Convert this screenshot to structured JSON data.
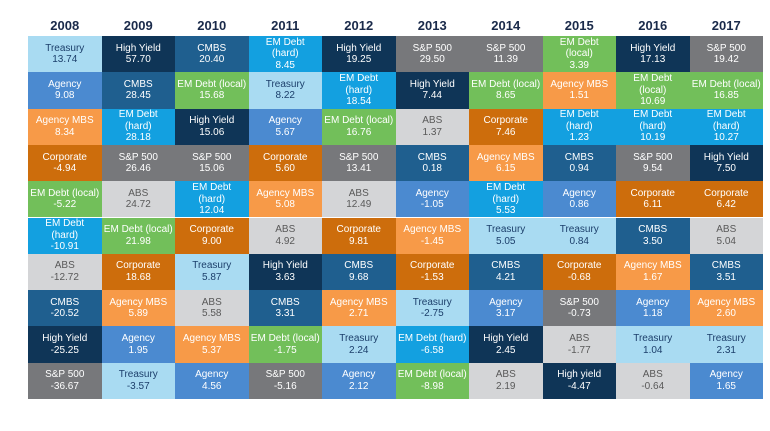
{
  "chart_data": {
    "type": "table",
    "years": [
      "2008",
      "2009",
      "2010",
      "2011",
      "2012",
      "2013",
      "2014",
      "2015",
      "2016",
      "2017"
    ],
    "colors": {
      "Treasury": {
        "bg": "#a9dbf2",
        "fg": "#1c3f6b"
      },
      "High Yield": {
        "bg": "#0f3557",
        "fg": "#ffffff"
      },
      "CMBS": {
        "bg": "#1f5f8f",
        "fg": "#ffffff"
      },
      "EM Debt (hard)": {
        "bg": "#13a0e0",
        "fg": "#ffffff"
      },
      "S&P 500": {
        "bg": "#77787b",
        "fg": "#ffffff"
      },
      "EM Debt (local)": {
        "bg": "#72bf5a",
        "fg": "#ffffff"
      },
      "Agency": {
        "bg": "#4b8ad0",
        "fg": "#ffffff"
      },
      "Agency MBS": {
        "bg": "#f79a48",
        "fg": "#ffffff"
      },
      "ABS": {
        "bg": "#d4d5d7",
        "fg": "#595959"
      },
      "Corporate": {
        "bg": "#cd6d0c",
        "fg": "#ffffff"
      }
    },
    "columns": [
      [
        [
          "Treasury",
          "13.74"
        ],
        [
          "Agency",
          "9.08"
        ],
        [
          "Agency MBS",
          "8.34"
        ],
        [
          "Corporate",
          "-4.94"
        ],
        [
          "EM Debt (local)",
          "-5.22"
        ],
        [
          "EM Debt\n(hard)",
          "-10.91"
        ],
        [
          "ABS",
          "-12.72"
        ],
        [
          "CMBS",
          "-20.52"
        ],
        [
          "High Yield",
          "-25.25"
        ],
        [
          "S&P 500",
          "-36.67"
        ]
      ],
      [
        [
          "High Yield",
          "57.70"
        ],
        [
          "CMBS",
          "28.45"
        ],
        [
          "EM Debt\n(hard)",
          "28.18"
        ],
        [
          "S&P 500",
          "26.46"
        ],
        [
          "ABS",
          "24.72"
        ],
        [
          "EM Debt (local)",
          "21.98"
        ],
        [
          "Corporate",
          "18.68"
        ],
        [
          "Agency MBS",
          "5.89"
        ],
        [
          "Agency",
          "1.95"
        ],
        [
          "Treasury",
          "-3.57"
        ]
      ],
      [
        [
          "CMBS",
          "20.40"
        ],
        [
          "EM Debt (local)",
          "15.68"
        ],
        [
          "High Yield",
          "15.06"
        ],
        [
          "S&P 500",
          "15.06"
        ],
        [
          "EM Debt\n(hard)",
          "12.04"
        ],
        [
          "Corporate",
          "9.00"
        ],
        [
          "Treasury",
          "5.87"
        ],
        [
          "ABS",
          "5.58"
        ],
        [
          "Agency MBS",
          "5.37"
        ],
        [
          "Agency",
          "4.56"
        ]
      ],
      [
        [
          "EM Debt\n(hard)",
          "8.45"
        ],
        [
          "Treasury",
          "8.22"
        ],
        [
          "Agency",
          "5.67"
        ],
        [
          "Corporate",
          "5.60"
        ],
        [
          "Agency MBS",
          "5.08"
        ],
        [
          "ABS",
          "4.92"
        ],
        [
          "High Yield",
          "3.63"
        ],
        [
          "CMBS",
          "3.31"
        ],
        [
          "EM Debt (local)",
          "-1.75"
        ],
        [
          "S&P 500",
          "-5.16"
        ]
      ],
      [
        [
          "High Yield",
          "19.25"
        ],
        [
          "EM Debt\n(hard)",
          "18.54"
        ],
        [
          "EM Debt (local)",
          "16.76"
        ],
        [
          "S&P 500",
          "13.41"
        ],
        [
          "ABS",
          "12.49"
        ],
        [
          "Corporate",
          "9.81"
        ],
        [
          "CMBS",
          "9.68"
        ],
        [
          "Agency MBS",
          "2.71"
        ],
        [
          "Treasury",
          "2.24"
        ],
        [
          "Agency",
          "2.12"
        ]
      ],
      [
        [
          "S&P 500",
          "29.50"
        ],
        [
          "High Yield",
          "7.44"
        ],
        [
          "ABS",
          "1.37"
        ],
        [
          "CMBS",
          "0.18"
        ],
        [
          "Agency",
          "-1.05"
        ],
        [
          "Agency MBS",
          "-1.45"
        ],
        [
          "Corporate",
          "-1.53"
        ],
        [
          "Treasury",
          "-2.75"
        ],
        [
          "EM Debt (hard)",
          "-6.58"
        ],
        [
          "EM Debt (local)",
          "-8.98"
        ]
      ],
      [
        [
          "S&P 500",
          "11.39"
        ],
        [
          "EM Debt (local)",
          "8.65"
        ],
        [
          "Corporate",
          "7.46"
        ],
        [
          "Agency MBS",
          "6.15"
        ],
        [
          "EM Debt\n(hard)",
          "5.53"
        ],
        [
          "Treasury",
          "5.05"
        ],
        [
          "CMBS",
          "4.21"
        ],
        [
          "Agency",
          "3.17"
        ],
        [
          "High Yield",
          "2.45"
        ],
        [
          "ABS",
          "2.19"
        ]
      ],
      [
        [
          "EM Debt\n(local)",
          "3.39"
        ],
        [
          "Agency MBS",
          "1.51"
        ],
        [
          "EM Debt\n(hard)",
          "1.23"
        ],
        [
          "CMBS",
          "0.94"
        ],
        [
          "Agency",
          "0.86"
        ],
        [
          "Treasury",
          "0.84"
        ],
        [
          "Corporate",
          "-0.68"
        ],
        [
          "S&P 500",
          "-0.73"
        ],
        [
          "ABS",
          "-1.77"
        ],
        [
          "High yield",
          "-4.47"
        ]
      ],
      [
        [
          "High Yield",
          "17.13"
        ],
        [
          "EM Debt\n(local)",
          "10.69"
        ],
        [
          "EM Debt\n(hard)",
          "10.19"
        ],
        [
          "S&P 500",
          "9.54"
        ],
        [
          "Corporate",
          "6.11"
        ],
        [
          "CMBS",
          "3.50"
        ],
        [
          "Agency MBS",
          "1.67"
        ],
        [
          "Agency",
          "1.18"
        ],
        [
          "Treasury",
          "1.04"
        ],
        [
          "ABS",
          "-0.64"
        ]
      ],
      [
        [
          "S&P 500",
          "19.42"
        ],
        [
          "EM Debt (local)",
          "16.85"
        ],
        [
          "EM Debt\n(hard)",
          "10.27"
        ],
        [
          "High Yield",
          "7.50"
        ],
        [
          "Corporate",
          "6.42"
        ],
        [
          "ABS",
          "5.04"
        ],
        [
          "CMBS",
          "3.51"
        ],
        [
          "Agency MBS",
          "2.60"
        ],
        [
          "Treasury",
          "2.31"
        ],
        [
          "Agency",
          "1.65"
        ]
      ]
    ]
  }
}
